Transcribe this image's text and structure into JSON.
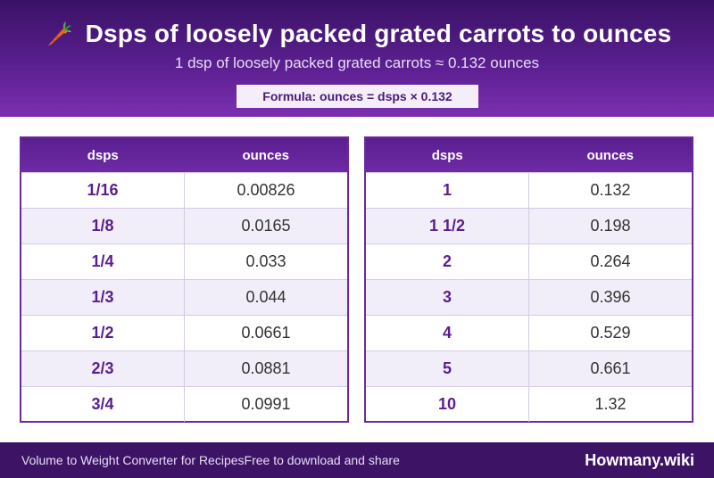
{
  "header": {
    "title": "Dsps of loosely packed grated carrots to ounces",
    "subtitle": "1 dsp of loosely packed grated carrots ≈ 0.132 ounces",
    "formula": "Formula: ounces = dsps × 0.132",
    "icon": "carrot-icon"
  },
  "tables": {
    "left": {
      "col1": "dsps",
      "col2": "ounces",
      "rows": [
        {
          "dsps": "1/16",
          "ounces": "0.00826"
        },
        {
          "dsps": "1/8",
          "ounces": "0.0165"
        },
        {
          "dsps": "1/4",
          "ounces": "0.033"
        },
        {
          "dsps": "1/3",
          "ounces": "0.044"
        },
        {
          "dsps": "1/2",
          "ounces": "0.0661"
        },
        {
          "dsps": "2/3",
          "ounces": "0.0881"
        },
        {
          "dsps": "3/4",
          "ounces": "0.0991"
        }
      ]
    },
    "right": {
      "col1": "dsps",
      "col2": "ounces",
      "rows": [
        {
          "dsps": "1",
          "ounces": "0.132"
        },
        {
          "dsps": "1 1/2",
          "ounces": "0.198"
        },
        {
          "dsps": "2",
          "ounces": "0.264"
        },
        {
          "dsps": "3",
          "ounces": "0.396"
        },
        {
          "dsps": "4",
          "ounces": "0.529"
        },
        {
          "dsps": "5",
          "ounces": "0.661"
        },
        {
          "dsps": "10",
          "ounces": "1.32"
        }
      ]
    }
  },
  "footer": {
    "left_text": "Volume to Weight Converter for RecipesFree to download and share",
    "brand": "Howmany.wiki"
  },
  "colors": {
    "header_dark": "#3a1266",
    "accent_purple": "#5a1f8f",
    "footer": "#3d1465",
    "row_alt": "#f2eef9"
  }
}
